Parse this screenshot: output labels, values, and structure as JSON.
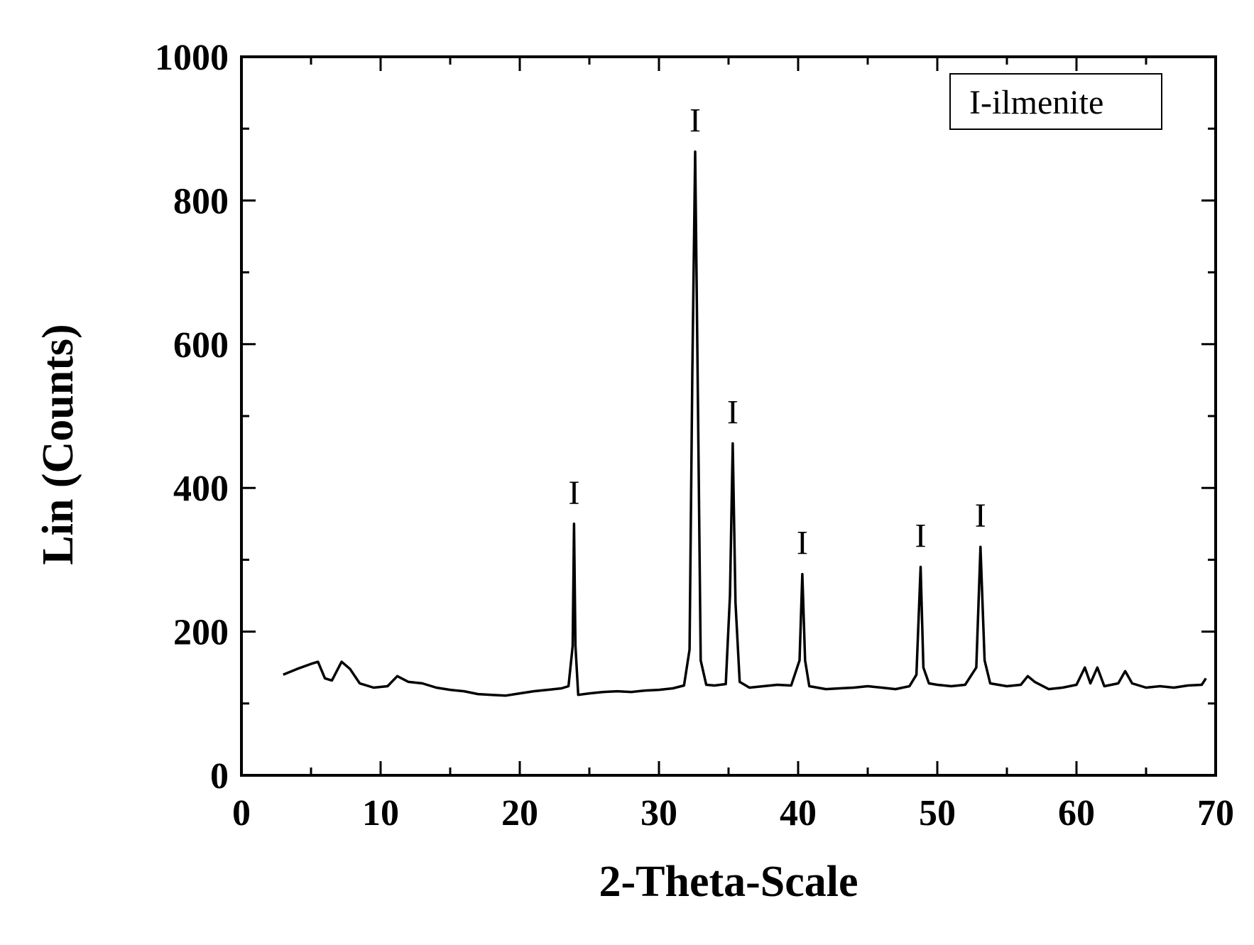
{
  "chart_data": {
    "type": "line",
    "xlabel": "2-Theta-Scale",
    "ylabel": "Lin (Counts)",
    "xlim": [
      0,
      70
    ],
    "ylim": [
      0,
      1000
    ],
    "x_ticks": [
      0,
      10,
      20,
      30,
      40,
      50,
      60,
      70
    ],
    "y_ticks": [
      0,
      200,
      400,
      600,
      800,
      1000
    ],
    "grid": false,
    "legend": {
      "text": "I-ilmenite",
      "placement": "top-right"
    },
    "line_color": "#000000",
    "series": [
      {
        "values_xy": [
          [
            3,
            140
          ],
          [
            4,
            148
          ],
          [
            5,
            155
          ],
          [
            5.5,
            158
          ],
          [
            6,
            135
          ],
          [
            6.5,
            132
          ],
          [
            7.2,
            158
          ],
          [
            7.8,
            148
          ],
          [
            8.5,
            128
          ],
          [
            9.5,
            122
          ],
          [
            10.5,
            124
          ],
          [
            11.2,
            138
          ],
          [
            12,
            130
          ],
          [
            13,
            128
          ],
          [
            14,
            122
          ],
          [
            15,
            119
          ],
          [
            16,
            117
          ],
          [
            17,
            113
          ],
          [
            18,
            112
          ],
          [
            19,
            111
          ],
          [
            20,
            114
          ],
          [
            21,
            117
          ],
          [
            22,
            119
          ],
          [
            23,
            121
          ],
          [
            23.5,
            124
          ],
          [
            23.8,
            180
          ],
          [
            23.9,
            350
          ],
          [
            24.0,
            180
          ],
          [
            24.2,
            112
          ],
          [
            25,
            114
          ],
          [
            26,
            116
          ],
          [
            27,
            117
          ],
          [
            28,
            116
          ],
          [
            29,
            118
          ],
          [
            30,
            119
          ],
          [
            31,
            121
          ],
          [
            31.8,
            125
          ],
          [
            32.2,
            175
          ],
          [
            32.4,
            560
          ],
          [
            32.6,
            868
          ],
          [
            32.8,
            520
          ],
          [
            33.0,
            160
          ],
          [
            33.4,
            126
          ],
          [
            34,
            125
          ],
          [
            34.8,
            127
          ],
          [
            35.1,
            250
          ],
          [
            35.3,
            462
          ],
          [
            35.5,
            240
          ],
          [
            35.8,
            130
          ],
          [
            36.5,
            122
          ],
          [
            37.5,
            124
          ],
          [
            38.5,
            126
          ],
          [
            39.5,
            125
          ],
          [
            40.1,
            160
          ],
          [
            40.3,
            280
          ],
          [
            40.5,
            160
          ],
          [
            40.8,
            124
          ],
          [
            42,
            120
          ],
          [
            43,
            121
          ],
          [
            44,
            122
          ],
          [
            45,
            124
          ],
          [
            46,
            122
          ],
          [
            47,
            120
          ],
          [
            48,
            124
          ],
          [
            48.5,
            140
          ],
          [
            48.8,
            290
          ],
          [
            49.0,
            150
          ],
          [
            49.4,
            128
          ],
          [
            50,
            126
          ],
          [
            51,
            124
          ],
          [
            52,
            126
          ],
          [
            52.8,
            150
          ],
          [
            53.1,
            318
          ],
          [
            53.4,
            160
          ],
          [
            53.8,
            128
          ],
          [
            55,
            124
          ],
          [
            56,
            126
          ],
          [
            56.5,
            138
          ],
          [
            57,
            130
          ],
          [
            58,
            120
          ],
          [
            59,
            122
          ],
          [
            60,
            126
          ],
          [
            60.6,
            150
          ],
          [
            61,
            128
          ],
          [
            61.5,
            150
          ],
          [
            62,
            124
          ],
          [
            63,
            128
          ],
          [
            63.5,
            145
          ],
          [
            64,
            128
          ],
          [
            65,
            122
          ],
          [
            66,
            124
          ],
          [
            67,
            122
          ],
          [
            68,
            125
          ],
          [
            69,
            126
          ],
          [
            69.3,
            135
          ]
        ]
      }
    ],
    "peak_markers": [
      {
        "x": 23.9,
        "y": 350,
        "label": "I"
      },
      {
        "x": 32.6,
        "y": 868,
        "label": "I"
      },
      {
        "x": 35.3,
        "y": 462,
        "label": "I"
      },
      {
        "x": 40.3,
        "y": 280,
        "label": "I"
      },
      {
        "x": 48.8,
        "y": 290,
        "label": "I"
      },
      {
        "x": 53.1,
        "y": 318,
        "label": "I"
      }
    ]
  }
}
